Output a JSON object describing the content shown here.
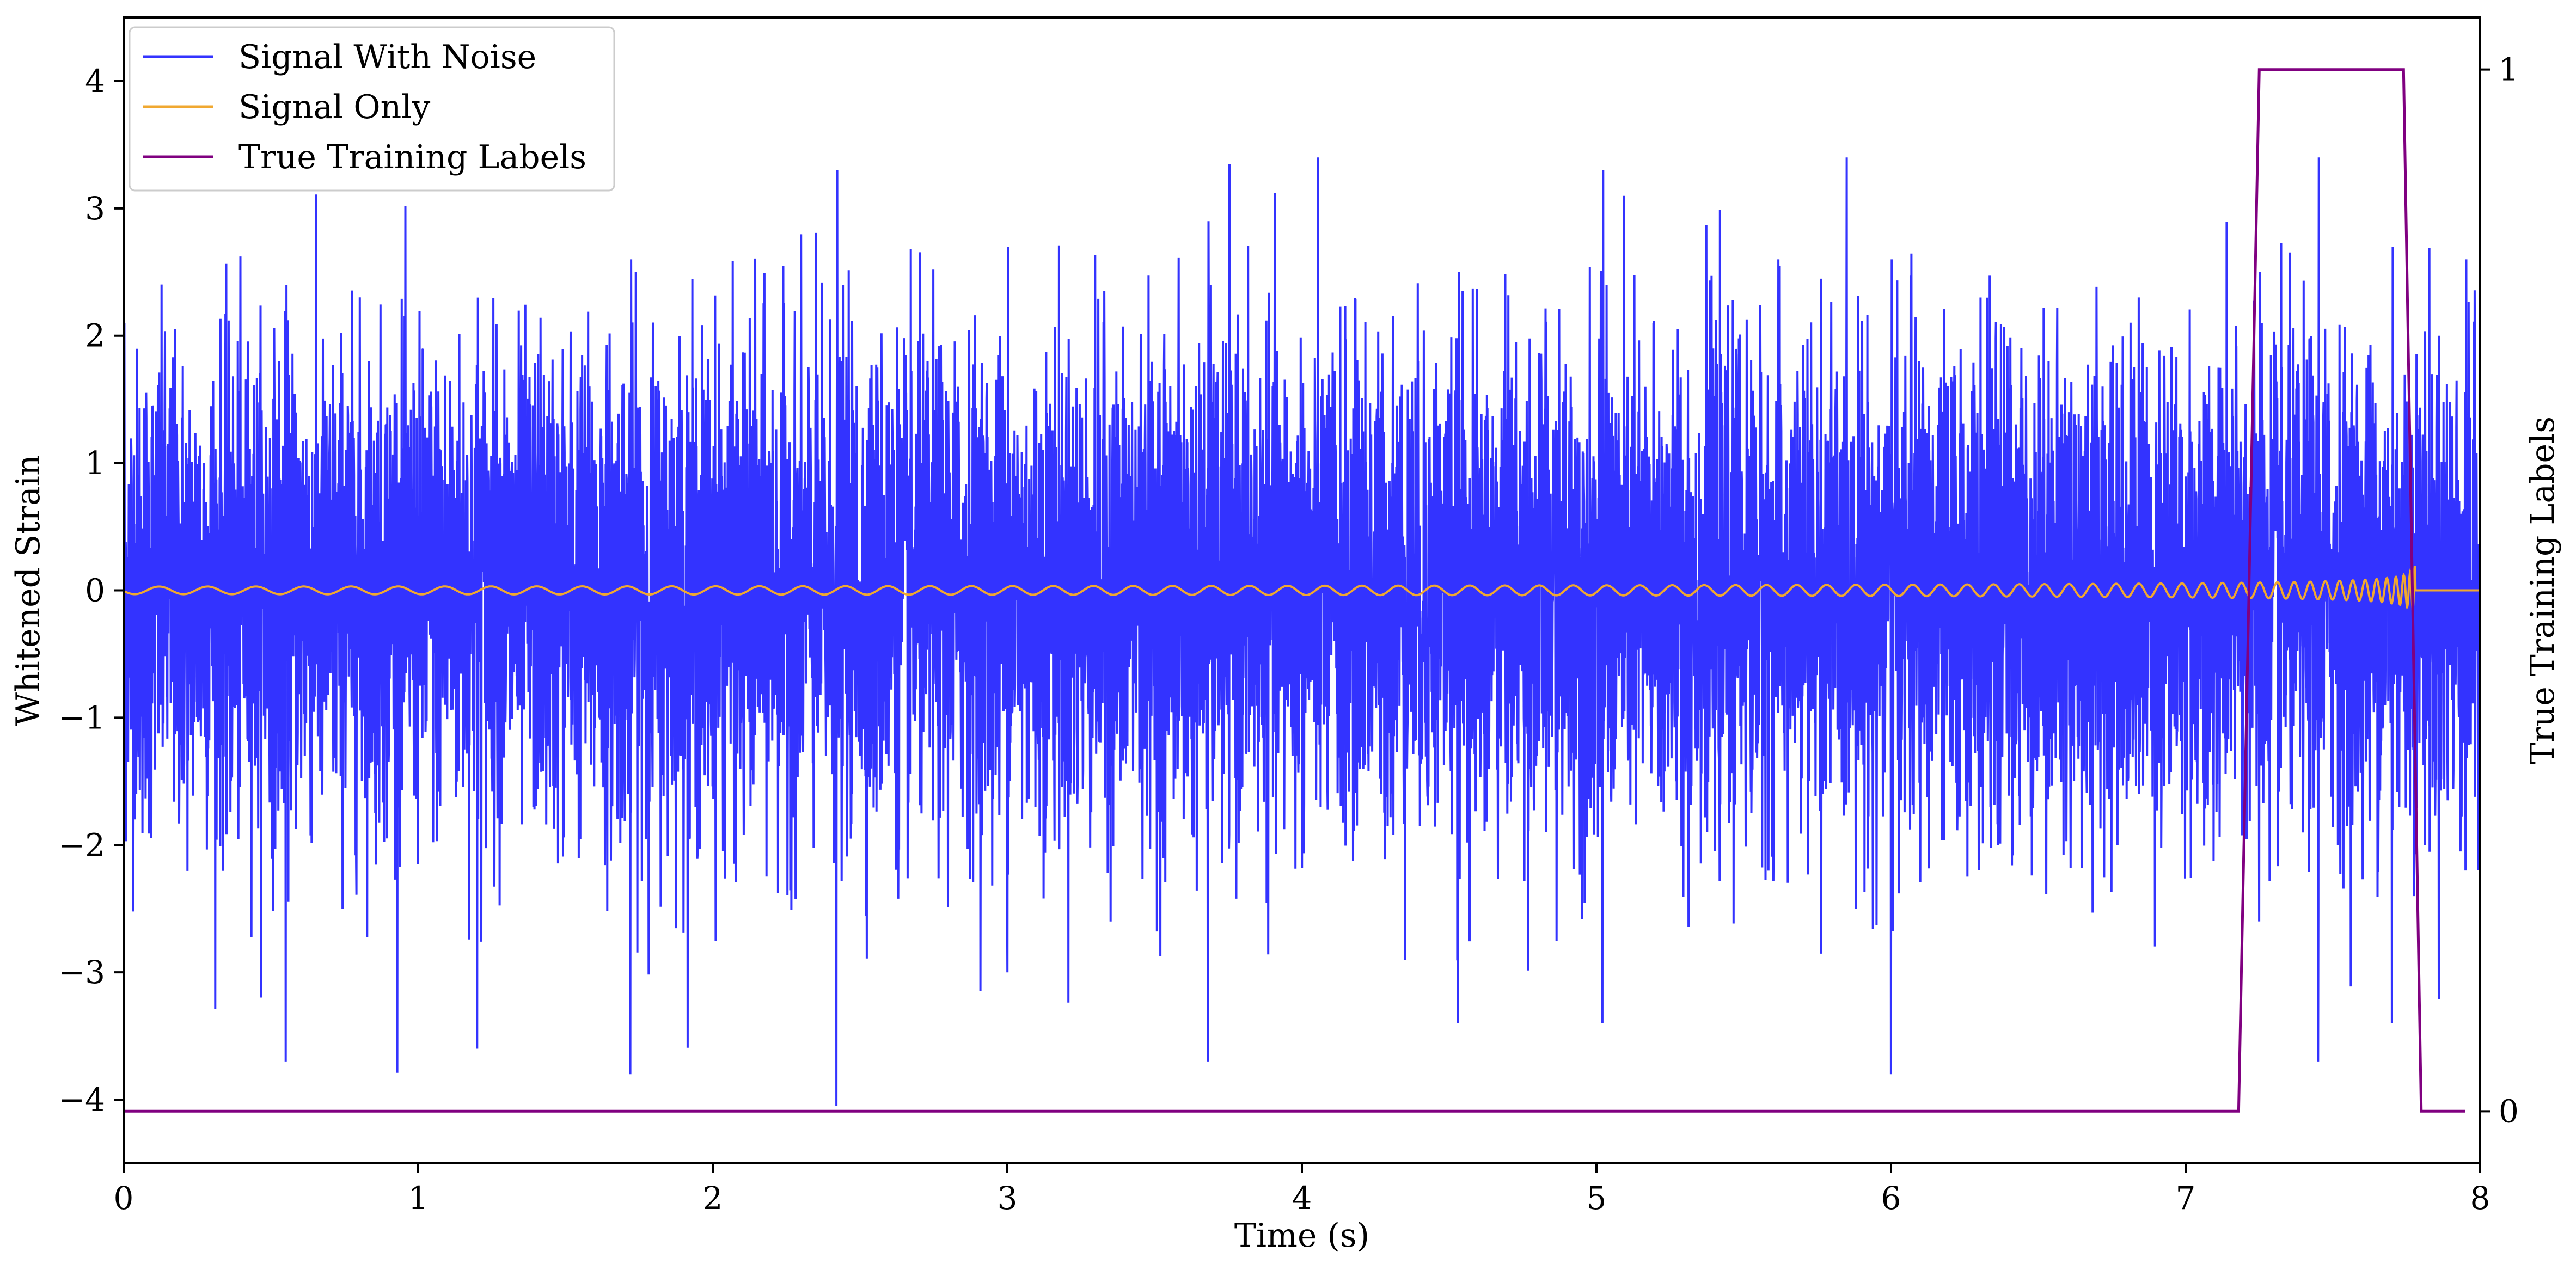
{
  "chart_data": {
    "type": "line",
    "xlabel": "Time (s)",
    "ylabel": "Whitened Strain",
    "y2label": "True Training Labels",
    "xlim": [
      0,
      8
    ],
    "ylim": [
      -4.5,
      4.5
    ],
    "y2lim": [
      -0.05,
      1.05
    ],
    "x_ticks": [
      0,
      1,
      2,
      3,
      4,
      5,
      6,
      7,
      8
    ],
    "y_ticks": [
      4,
      3,
      2,
      1,
      0,
      -1,
      -2,
      -3,
      -4
    ],
    "y_tick_labels": [
      "4",
      "3",
      "2",
      "1",
      "0",
      "−1",
      "−2",
      "−3",
      "−4"
    ],
    "y2_ticks": [
      1,
      0
    ],
    "grid": false,
    "legend_position": "top-left",
    "series": [
      {
        "name": "Signal With Noise",
        "color": "#3333ff",
        "kind": "noise",
        "x_range": [
          0,
          8
        ],
        "std": 1.0,
        "envelope_samples": {
          "x": [
            0.0,
            0.55,
            1.2,
            1.72,
            2.42,
            3.0,
            3.68,
            4.53,
            5.02,
            6.0,
            7.25,
            7.45,
            7.7,
            7.95
          ],
          "ymax": [
            2.1,
            2.4,
            2.3,
            2.6,
            3.3,
            2.7,
            2.9,
            2.5,
            3.3,
            2.6,
            2.5,
            3.4,
            2.7,
            2.6
          ],
          "ymin": [
            -2.0,
            -3.7,
            -3.6,
            -3.8,
            -4.05,
            -3.0,
            -3.7,
            -3.4,
            -3.4,
            -3.8,
            -2.6,
            -3.7,
            -3.4,
            -2.2
          ]
        }
      },
      {
        "name": "Signal Only",
        "color": "#f0a830",
        "kind": "chirp",
        "x_range": [
          0,
          8
        ],
        "merger_time": 7.78,
        "amplitude_start": 0.03,
        "peak_amplitude": 0.95,
        "post_merger_value": 0.0
      },
      {
        "name": "True Training Labels",
        "color": "#800080",
        "axis": "y2",
        "kind": "step",
        "x": [
          0,
          7.18,
          7.25,
          7.74,
          7.8,
          7.95
        ],
        "y": [
          0,
          0,
          1,
          1,
          0,
          0
        ]
      }
    ]
  }
}
